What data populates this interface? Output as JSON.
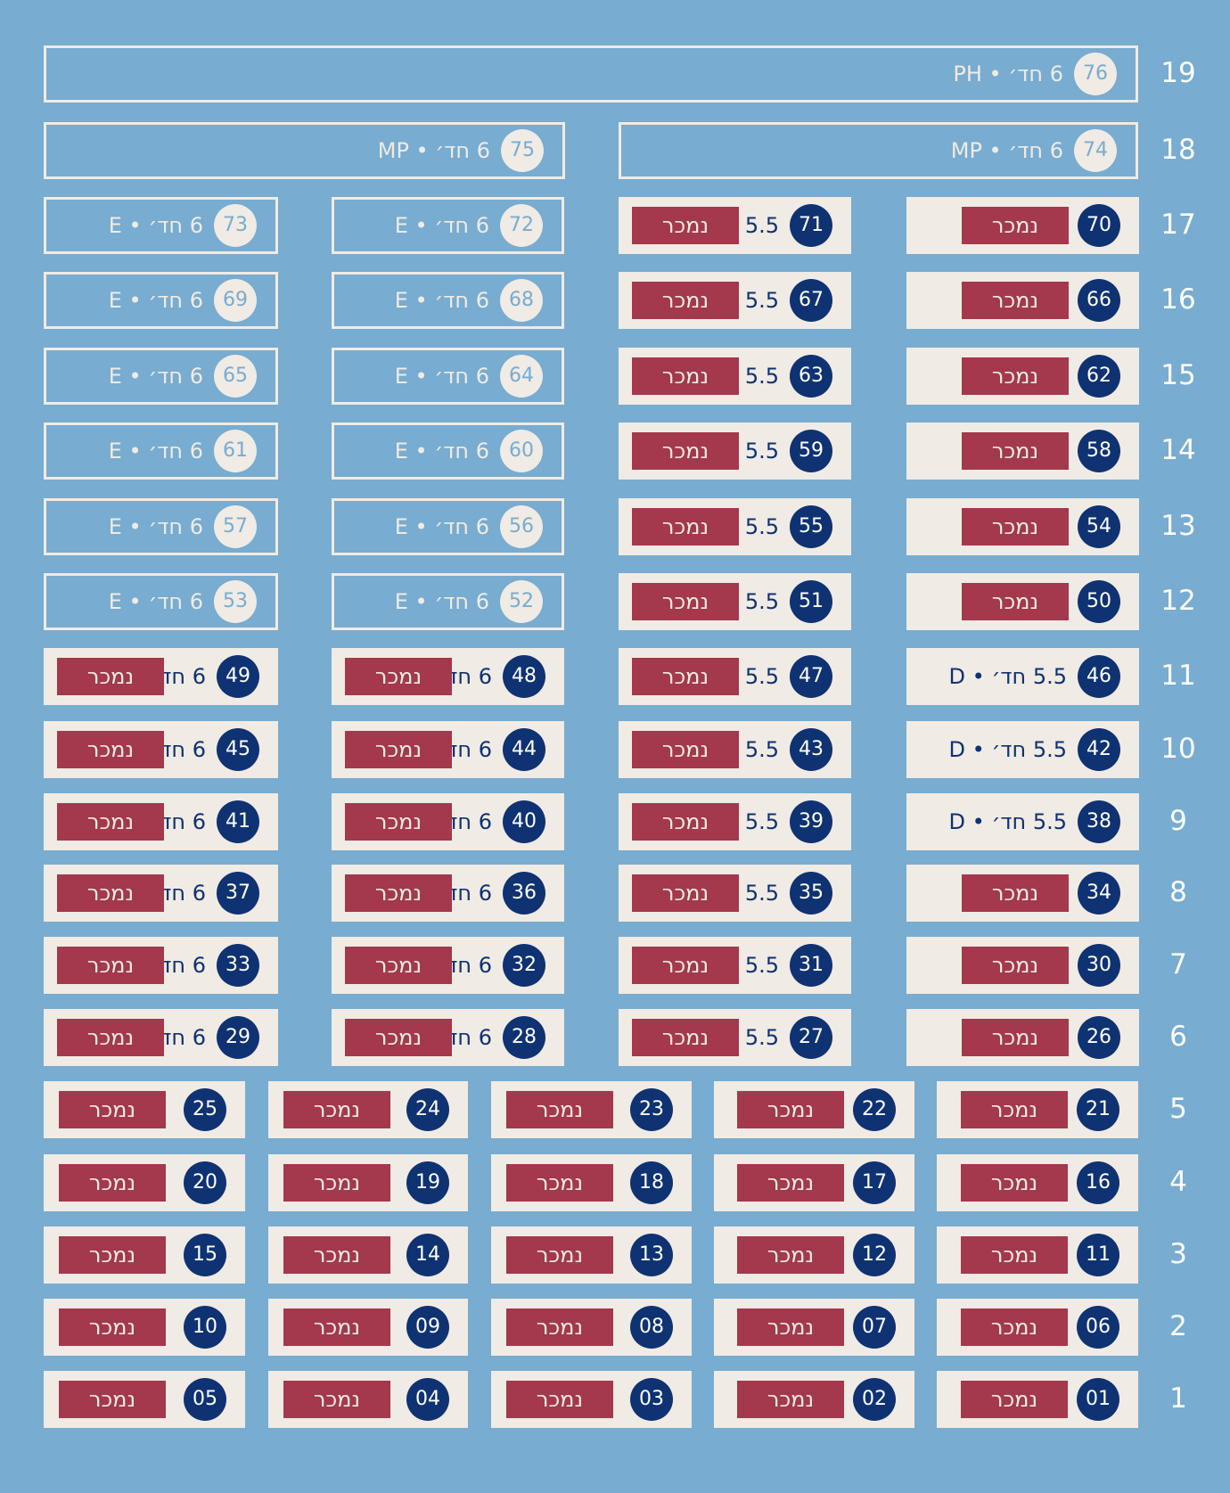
{
  "sold_label": "נמכר",
  "colors": {
    "background": "#78acd0",
    "unit_fill": "#f0ebe4",
    "badge_sold": "#0f3272",
    "sold_tag": "#a4384c"
  },
  "floors": [
    {
      "floor": "19",
      "units": [
        {
          "number": "76",
          "info": "6 חד׳ • PH",
          "status": "available"
        }
      ]
    },
    {
      "floor": "18",
      "units": [
        {
          "number": "74",
          "info": "6 חד׳ • MP",
          "status": "available"
        },
        {
          "number": "75",
          "info": "6 חד׳ • MP",
          "status": "available"
        }
      ]
    },
    {
      "floor": "17",
      "units": [
        {
          "number": "70",
          "info": "",
          "status": "sold"
        },
        {
          "number": "71",
          "info": "5.5",
          "status": "sold"
        },
        {
          "number": "72",
          "info": "6 חד׳ • E",
          "status": "available"
        },
        {
          "number": "73",
          "info": "6 חד׳ • E",
          "status": "available"
        }
      ]
    },
    {
      "floor": "16",
      "units": [
        {
          "number": "66",
          "info": "",
          "status": "sold"
        },
        {
          "number": "67",
          "info": "5.5",
          "status": "sold"
        },
        {
          "number": "68",
          "info": "6 חד׳ • E",
          "status": "available"
        },
        {
          "number": "69",
          "info": "6 חד׳ • E",
          "status": "available"
        }
      ]
    },
    {
      "floor": "15",
      "units": [
        {
          "number": "62",
          "info": "",
          "status": "sold"
        },
        {
          "number": "63",
          "info": "5.5",
          "status": "sold"
        },
        {
          "number": "64",
          "info": "6 חד׳ • E",
          "status": "available"
        },
        {
          "number": "65",
          "info": "6 חד׳ • E",
          "status": "available"
        }
      ]
    },
    {
      "floor": "14",
      "units": [
        {
          "number": "58",
          "info": "",
          "status": "sold"
        },
        {
          "number": "59",
          "info": "5.5",
          "status": "sold"
        },
        {
          "number": "60",
          "info": "6 חד׳ • E",
          "status": "available"
        },
        {
          "number": "61",
          "info": "6 חד׳ • E",
          "status": "available"
        }
      ]
    },
    {
      "floor": "13",
      "units": [
        {
          "number": "54",
          "info": "",
          "status": "sold"
        },
        {
          "number": "55",
          "info": "5.5",
          "status": "sold"
        },
        {
          "number": "56",
          "info": "6 חד׳ • E",
          "status": "available"
        },
        {
          "number": "57",
          "info": "6 חד׳ • E",
          "status": "available"
        }
      ]
    },
    {
      "floor": "12",
      "units": [
        {
          "number": "50",
          "info": "",
          "status": "sold"
        },
        {
          "number": "51",
          "info": "5.5",
          "status": "sold"
        },
        {
          "number": "52",
          "info": "6 חד׳ • E",
          "status": "available"
        },
        {
          "number": "53",
          "info": "6 חד׳ • E",
          "status": "available"
        }
      ]
    },
    {
      "floor": "11",
      "units": [
        {
          "number": "46",
          "info": "5.5 חד׳ • D",
          "status": "available-sold-style"
        },
        {
          "number": "47",
          "info": "5.5",
          "status": "sold"
        },
        {
          "number": "48",
          "info": "6 חד",
          "status": "sold"
        },
        {
          "number": "49",
          "info": "6 חד",
          "status": "sold"
        }
      ]
    },
    {
      "floor": "10",
      "units": [
        {
          "number": "42",
          "info": "5.5 חד׳ • D",
          "status": "available-sold-style"
        },
        {
          "number": "43",
          "info": "5.5",
          "status": "sold"
        },
        {
          "number": "44",
          "info": "6 חד",
          "status": "sold"
        },
        {
          "number": "45",
          "info": "6 חד",
          "status": "sold"
        }
      ]
    },
    {
      "floor": "9",
      "units": [
        {
          "number": "38",
          "info": "5.5 חד׳ • D",
          "status": "available-sold-style"
        },
        {
          "number": "39",
          "info": "5.5",
          "status": "sold"
        },
        {
          "number": "40",
          "info": "6 חד",
          "status": "sold"
        },
        {
          "number": "41",
          "info": "6 חד",
          "status": "sold"
        }
      ]
    },
    {
      "floor": "8",
      "units": [
        {
          "number": "34",
          "info": "",
          "status": "sold"
        },
        {
          "number": "35",
          "info": "5.5",
          "status": "sold"
        },
        {
          "number": "36",
          "info": "6 חד",
          "status": "sold"
        },
        {
          "number": "37",
          "info": "6 חד",
          "status": "sold"
        }
      ]
    },
    {
      "floor": "7",
      "units": [
        {
          "number": "30",
          "info": "",
          "status": "sold"
        },
        {
          "number": "31",
          "info": "5.5",
          "status": "sold"
        },
        {
          "number": "32",
          "info": "6 חד",
          "status": "sold"
        },
        {
          "number": "33",
          "info": "6 חד",
          "status": "sold"
        }
      ]
    },
    {
      "floor": "6",
      "units": [
        {
          "number": "26",
          "info": "",
          "status": "sold"
        },
        {
          "number": "27",
          "info": "5.5",
          "status": "sold"
        },
        {
          "number": "28",
          "info": "6 חד",
          "status": "sold"
        },
        {
          "number": "29",
          "info": "6 חד",
          "status": "sold"
        }
      ]
    },
    {
      "floor": "5",
      "units": [
        {
          "number": "21",
          "info": "",
          "status": "sold"
        },
        {
          "number": "22",
          "info": "",
          "status": "sold"
        },
        {
          "number": "23",
          "info": "",
          "status": "sold"
        },
        {
          "number": "24",
          "info": "",
          "status": "sold"
        },
        {
          "number": "25",
          "info": "",
          "status": "sold"
        }
      ]
    },
    {
      "floor": "4",
      "units": [
        {
          "number": "16",
          "info": "",
          "status": "sold"
        },
        {
          "number": "17",
          "info": "",
          "status": "sold"
        },
        {
          "number": "18",
          "info": "",
          "status": "sold"
        },
        {
          "number": "19",
          "info": "",
          "status": "sold"
        },
        {
          "number": "20",
          "info": "",
          "status": "sold"
        }
      ]
    },
    {
      "floor": "3",
      "units": [
        {
          "number": "11",
          "info": "",
          "status": "sold"
        },
        {
          "number": "12",
          "info": "",
          "status": "sold"
        },
        {
          "number": "13",
          "info": "",
          "status": "sold"
        },
        {
          "number": "14",
          "info": "",
          "status": "sold"
        },
        {
          "number": "15",
          "info": "",
          "status": "sold"
        }
      ]
    },
    {
      "floor": "2",
      "units": [
        {
          "number": "06",
          "info": "",
          "status": "sold"
        },
        {
          "number": "07",
          "info": "",
          "status": "sold"
        },
        {
          "number": "08",
          "info": "",
          "status": "sold"
        },
        {
          "number": "09",
          "info": "",
          "status": "sold"
        },
        {
          "number": "10",
          "info": "",
          "status": "sold"
        }
      ]
    },
    {
      "floor": "1",
      "units": [
        {
          "number": "01",
          "info": "",
          "status": "sold"
        },
        {
          "number": "02",
          "info": "",
          "status": "sold"
        },
        {
          "number": "03",
          "info": "",
          "status": "sold"
        },
        {
          "number": "04",
          "info": "",
          "status": "sold"
        },
        {
          "number": "05",
          "info": "",
          "status": "sold"
        }
      ]
    }
  ]
}
